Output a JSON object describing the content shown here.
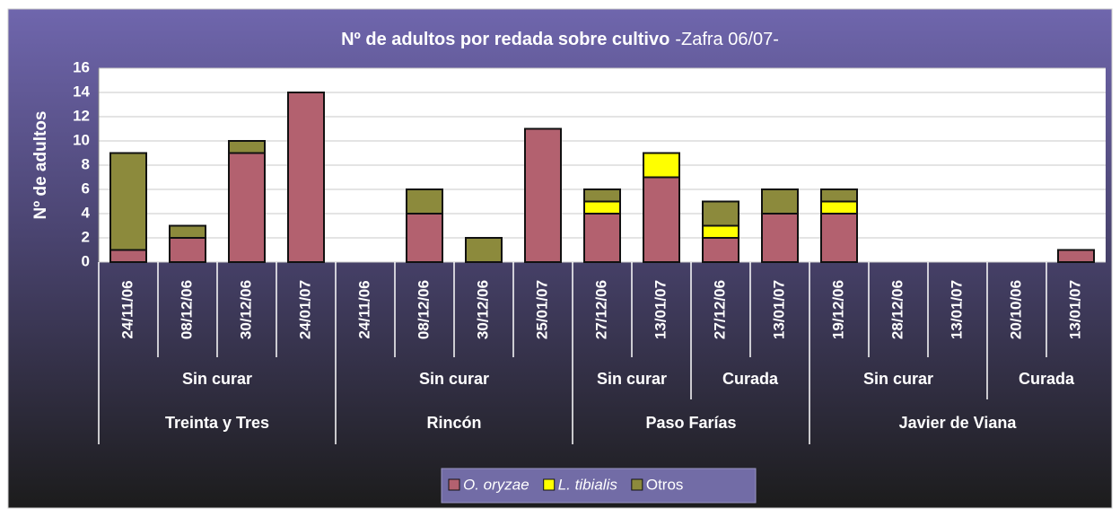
{
  "chart_data": {
    "type": "bar",
    "stacked": true,
    "title": "Nº de adultos por redada sobre cultivo",
    "subtitle": "-Zafra 06/07-",
    "y_label": "Nº de adultos",
    "categories": [
      "24/11/06",
      "08/12/06",
      "30/12/06",
      "24/01/07",
      "24/11/06",
      "08/12/06",
      "30/12/06",
      "25/01/07",
      "27/12/06",
      "13/01/07",
      "27/12/06",
      "13/01/07",
      "19/12/06",
      "28/12/06",
      "13/01/07",
      "20/10/06",
      "13/01/07"
    ],
    "subgroups": [
      {
        "label": "Sin curar",
        "count": 4
      },
      {
        "label": "Sin curar",
        "count": 4
      },
      {
        "label": "Sin curar",
        "count": 2
      },
      {
        "label": "Curada",
        "count": 2
      },
      {
        "label": "Sin curar",
        "count": 3
      },
      {
        "label": "Curada",
        "count": 2
      }
    ],
    "groups": [
      {
        "label": "Treinta y Tres",
        "count": 4
      },
      {
        "label": "Rincón",
        "count": 4
      },
      {
        "label": "Paso Farías",
        "count": 4
      },
      {
        "label": "Javier de Viana",
        "count": 5
      }
    ],
    "series": [
      {
        "name": "O. oryzae",
        "color": "#b3616f",
        "values": [
          1,
          2,
          9,
          14,
          0,
          4,
          0,
          11,
          4,
          7,
          2,
          4,
          4,
          0,
          0,
          0,
          1
        ]
      },
      {
        "name": "L. tibialis",
        "color": "#ffff00",
        "values": [
          0,
          0,
          0,
          0,
          0,
          0,
          0,
          0,
          1,
          2,
          1,
          0,
          1,
          0,
          0,
          0,
          0
        ]
      },
      {
        "name": "Otros",
        "color": "#8c8a3c",
        "values": [
          8,
          1,
          1,
          0,
          0,
          2,
          2,
          0,
          1,
          0,
          2,
          2,
          1,
          0,
          0,
          0,
          0
        ]
      }
    ],
    "ylim": [
      0,
      16
    ],
    "yticks": [
      0,
      2,
      4,
      6,
      8,
      10,
      12,
      14,
      16
    ],
    "grid": true,
    "legend": "bottom"
  }
}
